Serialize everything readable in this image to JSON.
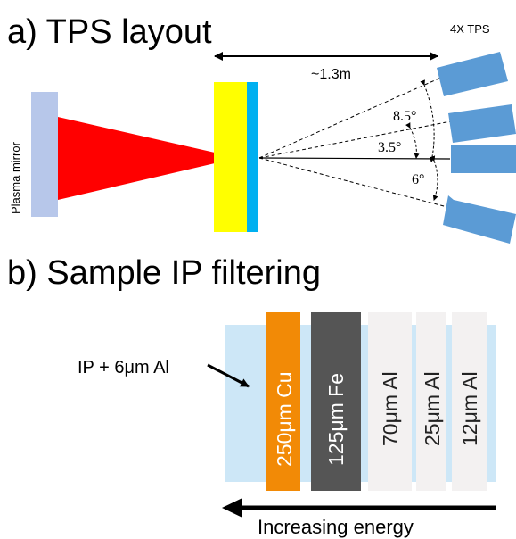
{
  "panel_a": {
    "title": "a) TPS layout",
    "distance_label": "~1.3m",
    "tps_label": "4X TPS",
    "plasma_mirror_label": "Plasma mirror",
    "angle_labels": [
      "8.5°",
      "3.5°",
      "6°"
    ]
  },
  "panel_b": {
    "title": "b) Sample IP filtering",
    "ip_label": "IP + 6μm Al",
    "filters": [
      {
        "label": "250μm Cu",
        "color": "#f28a06",
        "text_color": "#ffffff"
      },
      {
        "label": "125μm Fe",
        "color": "#555555",
        "text_color": "#ffffff"
      },
      {
        "label": "70μm Al",
        "color": "#f3f1f1",
        "text_color": "#222222"
      },
      {
        "label": "25μm Al",
        "color": "#f3f1f1",
        "text_color": "#222222"
      },
      {
        "label": "12μm Al",
        "color": "#f3f1f1",
        "text_color": "#222222"
      }
    ],
    "energy_label": "Increasing energy"
  },
  "colors": {
    "plasma_mirror": "#b7c7ea",
    "beam": "#ff0000",
    "target_front": "#ffff00",
    "target_back": "#00b0f0",
    "tps": "#5b9bd5",
    "ip_backing": "#cde7f7"
  }
}
